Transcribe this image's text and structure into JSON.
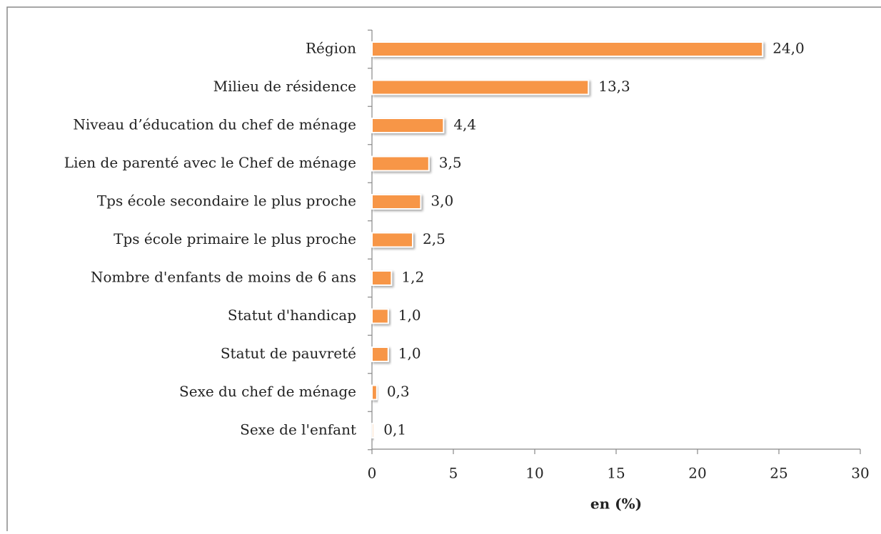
{
  "chart_data": {
    "type": "barh",
    "categories": [
      "Région",
      "Milieu de résidence",
      "Niveau d’éducation du chef de ménage",
      "Lien de parenté avec le Chef de ménage",
      "Tps école secondaire le plus proche",
      "Tps école primaire le plus proche",
      "Nombre d'enfants de moins de 6 ans",
      "Statut d'handicap",
      "Statut de pauvreté",
      "Sexe du chef de ménage",
      "Sexe de l'enfant"
    ],
    "values": [
      24.0,
      13.3,
      4.4,
      3.5,
      3.0,
      2.5,
      1.2,
      1.0,
      1.0,
      0.3,
      0.1
    ],
    "value_labels": [
      "24,0",
      "13,3",
      "4,4",
      "3,5",
      "3,0",
      "2,5",
      "1,2",
      "1,0",
      "1,0",
      "0,3",
      "0,1"
    ],
    "color": "#f79646",
    "xlabel": "en (%)",
    "xlim": [
      0,
      30
    ],
    "xticks": [
      0,
      5,
      10,
      15,
      20,
      25,
      30
    ],
    "grid": false
  }
}
